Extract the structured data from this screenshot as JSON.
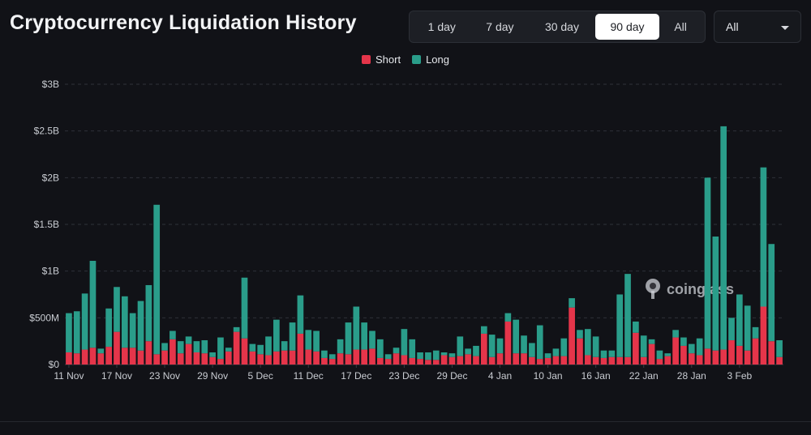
{
  "header": {
    "title": "Cryptocurrency Liquidation History"
  },
  "ranges": [
    {
      "label": "1 day",
      "active": false
    },
    {
      "label": "7 day",
      "active": false
    },
    {
      "label": "30 day",
      "active": false
    },
    {
      "label": "90 day",
      "active": true
    },
    {
      "label": "All",
      "active": false
    }
  ],
  "coin_select": {
    "value": "All"
  },
  "watermark": "coinglass",
  "colors": {
    "short": "#e5354a",
    "long": "#2a9d8a",
    "background": "#111217",
    "grid": "#2e3138",
    "text": "#c9ccd2"
  },
  "chart_data": {
    "type": "bar",
    "stacked": true,
    "x_tick_labels": [
      "11 Nov",
      "17 Nov",
      "23 Nov",
      "29 Nov",
      "5 Dec",
      "11 Dec",
      "17 Dec",
      "23 Dec",
      "29 Dec",
      "4 Jan",
      "10 Jan",
      "16 Jan",
      "22 Jan",
      "28 Jan",
      "3 Feb"
    ],
    "y_tick_labels": [
      "$0",
      "$500M",
      "$1B",
      "$1.5B",
      "$2B",
      "$2.5B",
      "$3B"
    ],
    "ylim": [
      0,
      3000
    ],
    "unit": "millions USD",
    "series": [
      {
        "name": "Short",
        "color": "#e5354a",
        "values": [
          130,
          120,
          160,
          180,
          120,
          190,
          350,
          180,
          180,
          150,
          250,
          110,
          150,
          270,
          120,
          220,
          130,
          120,
          80,
          60,
          140,
          350,
          280,
          140,
          110,
          100,
          140,
          150,
          150,
          330,
          160,
          140,
          70,
          60,
          120,
          110,
          160,
          160,
          170,
          70,
          60,
          120,
          100,
          70,
          60,
          50,
          50,
          100,
          80,
          90,
          110,
          90,
          330,
          80,
          120,
          460,
          120,
          120,
          80,
          60,
          70,
          90,
          90,
          610,
          280,
          100,
          80,
          70,
          80,
          80,
          80,
          340,
          80,
          220,
          60,
          90,
          290,
          200,
          120,
          100,
          170,
          150,
          160,
          260,
          200,
          150,
          280,
          620,
          250,
          80
        ]
      },
      {
        "name": "Long",
        "color": "#2a9d8a",
        "values": [
          420,
          450,
          600,
          930,
          50,
          410,
          480,
          550,
          370,
          530,
          600,
          1600,
          80,
          90,
          130,
          80,
          120,
          140,
          50,
          230,
          40,
          50,
          650,
          80,
          100,
          200,
          340,
          100,
          300,
          410,
          210,
          220,
          80,
          50,
          150,
          340,
          460,
          290,
          190,
          200,
          50,
          60,
          280,
          200,
          70,
          80,
          100,
          30,
          40,
          210,
          60,
          110,
          80,
          240,
          160,
          90,
          360,
          190,
          150,
          360,
          50,
          80,
          190,
          100,
          90,
          280,
          220,
          80,
          70,
          670,
          890,
          120,
          230,
          50,
          90,
          30,
          80,
          90,
          100,
          180,
          1830,
          1220,
          2390,
          240,
          550,
          480,
          120,
          1490,
          1040,
          180
        ]
      }
    ]
  }
}
